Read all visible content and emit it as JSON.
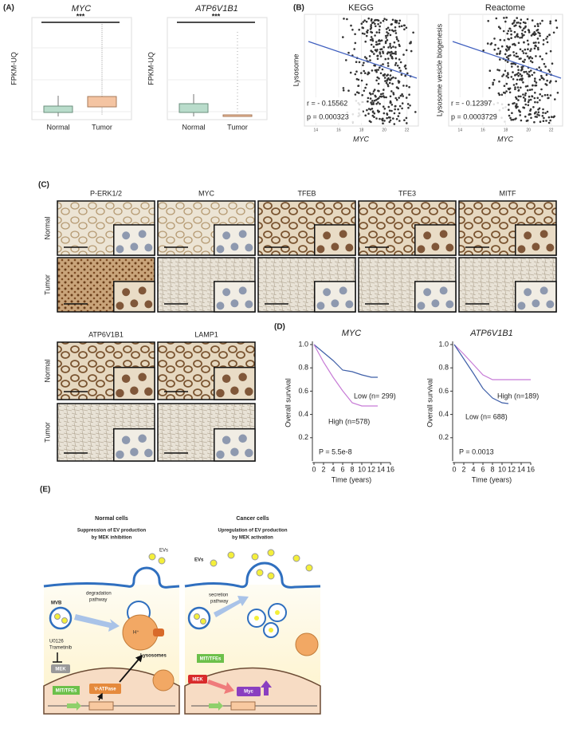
{
  "panel_a": {
    "label": "(A)",
    "plots": [
      {
        "title": "MYC",
        "y_label": "FPKM-UQ",
        "significance": "***",
        "categories": [
          "Normal",
          "Tumor"
        ]
      },
      {
        "title": "ATP6V1B1",
        "y_label": "FPKM-UQ",
        "significance": "***",
        "categories": [
          "Normal",
          "Tumor"
        ]
      }
    ]
  },
  "panel_b": {
    "label": "(B)",
    "plots": [
      {
        "title": "KEGG",
        "y_label": "Lysosome",
        "x_label": "MYC",
        "r": "r = - 0.15562",
        "p": "p = 0.000323",
        "xlim": [
          13,
          23
        ],
        "xticks": [
          14,
          16,
          18,
          20,
          22
        ]
      },
      {
        "title": "Reactome",
        "y_label": "Lysosome vesicle biogenesis",
        "x_label": "MYC",
        "r": "r = - 0.12397",
        "p": "p = 0.0003729",
        "xlim": [
          13,
          23
        ],
        "xticks": [
          14,
          16,
          18,
          20,
          22
        ]
      }
    ]
  },
  "panel_c": {
    "label": "(C)",
    "rows": [
      "Normal",
      "Tumor"
    ],
    "columns": [
      "P-ERK1/2",
      "MYC",
      "TFEB",
      "TFE3",
      "MITF"
    ],
    "columns_2": [
      "ATP6V1B1",
      "LAMP1"
    ]
  },
  "panel_d": {
    "label": "(D)",
    "plots": [
      {
        "title": "MYC",
        "y_label": "Overall survival",
        "x_label": "Time (years)",
        "xlim": [
          0,
          16
        ],
        "ylim": [
          0,
          1
        ],
        "xticks": [
          0,
          2,
          4,
          6,
          8,
          10,
          12,
          14,
          16
        ],
        "yticks": [
          0.2,
          0.4,
          0.6,
          0.8,
          {
            "value": 1,
            "label": "1.0"
          }
        ],
        "low": "Low (n= 299)",
        "high": "High (n=578)",
        "p": "P = 5.5e-8"
      },
      {
        "title": "ATP6V1B1",
        "y_label": "Overall survival",
        "x_label": "Time (years)",
        "xlim": [
          0,
          16
        ],
        "ylim": [
          0,
          1
        ],
        "xticks": [
          0,
          2,
          4,
          6,
          8,
          10,
          12,
          14,
          16
        ],
        "yticks": [
          0.2,
          0.4,
          0.6,
          0.8,
          {
            "value": 1,
            "label": "1.0"
          }
        ],
        "high": "High (n=189)",
        "low": "Low (n= 688)",
        "p": "P = 0.0013"
      }
    ]
  },
  "panel_e": {
    "label": "(E)",
    "left": {
      "title": "Normal cells",
      "subtitle": [
        "Suppression of EV production",
        "by MEK inhibition"
      ],
      "evs": "EVs",
      "mvb": "MVB",
      "pathway": [
        "degradation",
        "pathway"
      ],
      "drug": [
        "U0126",
        "Trametinib"
      ],
      "mek": "MEK",
      "tfes": "MIT/TFEs",
      "vatpase": "V-ATPase",
      "proton": "H⁺",
      "lysosomes": "Lysosomes"
    },
    "right": {
      "title": "Cancer cells",
      "subtitle": [
        "Upregulation of EV production",
        "by MEK activation"
      ],
      "evs": "EVs",
      "pathway": [
        "secretion",
        "pathway"
      ],
      "tfes": "MIT/TFEs",
      "mek": "MEK",
      "myc": "Myc"
    }
  }
}
